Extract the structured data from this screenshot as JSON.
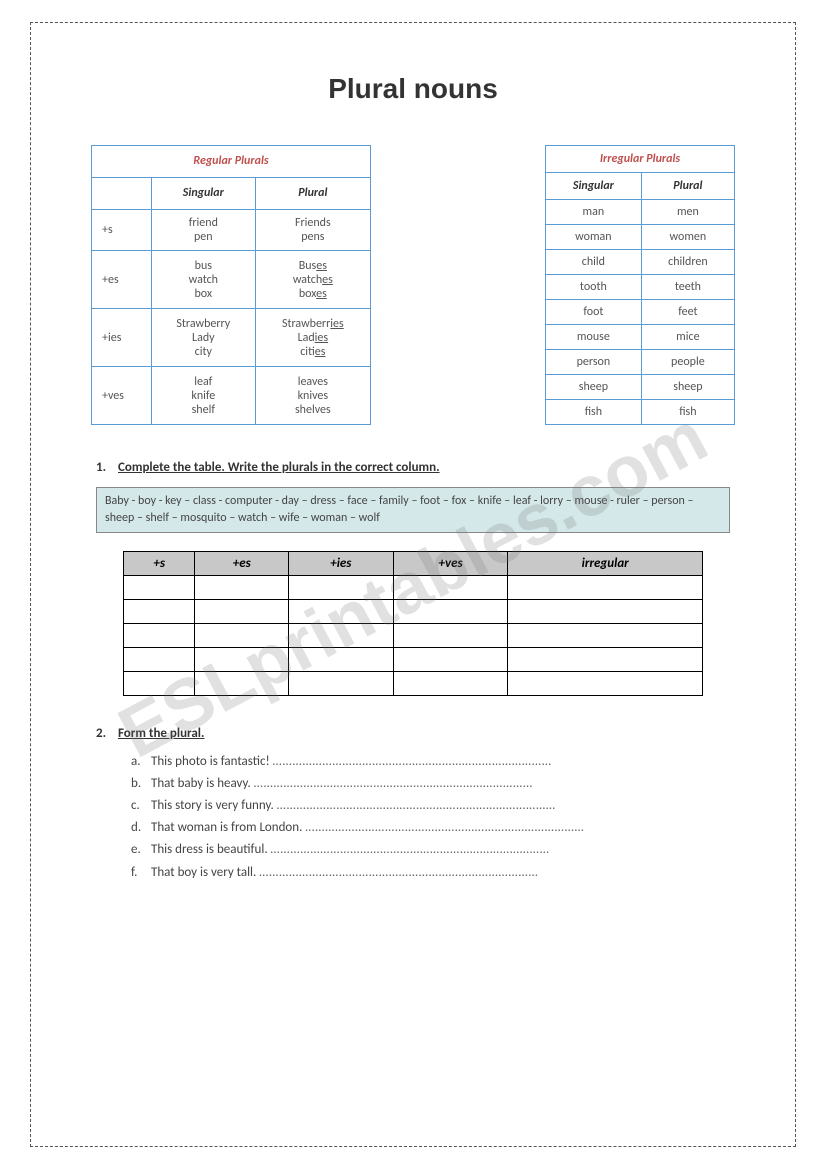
{
  "title": "Plural nouns",
  "watermark": "ESLprintables.com",
  "regular": {
    "title": "Regular Plurals",
    "col_singular": "Singular",
    "col_plural": "Plural",
    "rows": [
      {
        "rule": "+s",
        "singular": [
          "friend",
          "pen"
        ],
        "plural": [
          "Friends",
          "pens"
        ],
        "ul": []
      },
      {
        "rule": "+es",
        "singular": [
          "bus",
          "watch",
          "box"
        ],
        "plural": [
          "Bus<u>es</u>",
          "watch<u>es</u>",
          "box<u>es</u>"
        ],
        "ul": []
      },
      {
        "rule": "+ies",
        "singular": [
          "Strawberry",
          "Lady",
          "city"
        ],
        "plural": [
          "Strawberr<u>ies</u>",
          "Lad<u>ies</u>",
          "cit<u>ies</u>"
        ],
        "ul": []
      },
      {
        "rule": "+ves",
        "singular": [
          "leaf",
          "knife",
          "shelf"
        ],
        "plural": [
          "leaves",
          "knives",
          "shelves"
        ],
        "ul": []
      }
    ]
  },
  "irregular": {
    "title": "Irregular Plurals",
    "col_singular": "Singular",
    "col_plural": "Plural",
    "rows": [
      {
        "s": "man",
        "p": "men"
      },
      {
        "s": "woman",
        "p": "women"
      },
      {
        "s": "child",
        "p": "children"
      },
      {
        "s": "tooth",
        "p": "teeth"
      },
      {
        "s": "foot",
        "p": "feet"
      },
      {
        "s": "mouse",
        "p": "mice"
      },
      {
        "s": "person",
        "p": "people"
      },
      {
        "s": "sheep",
        "p": "sheep"
      },
      {
        "s": "fish",
        "p": "fish"
      }
    ]
  },
  "ex1": {
    "num": "1.",
    "heading": "Complete the table. Write the plurals in the correct column.",
    "wordbox": "Baby - boy - key – class - computer - day – dress – face – family – foot – fox – knife – leaf - lorry – mouse - ruler – person – sheep – shelf – mosquito – watch – wife – woman – wolf",
    "headers": [
      "+s",
      "+es",
      "+ies",
      "+ves",
      "irregular"
    ],
    "blank_rows": 5
  },
  "ex2": {
    "num": "2.",
    "heading": "Form the plural.",
    "items": [
      {
        "l": "a.",
        "t": "This photo is fantastic!"
      },
      {
        "l": "b.",
        "t": "That baby is heavy."
      },
      {
        "l": "c.",
        "t": "This story is very funny."
      },
      {
        "l": "d.",
        "t": "That woman is from London."
      },
      {
        "l": "e.",
        "t": "This dress is beautiful."
      },
      {
        "l": "f.",
        "t": "That boy is very tall."
      }
    ],
    "dots": "…………………………………………………………………………"
  },
  "colors": {
    "table_border": "#5b9bd5",
    "title_color": "#c0504d",
    "wordbox_bg": "#d4e8ea",
    "answer_header_bg": "#c8c8c8"
  }
}
